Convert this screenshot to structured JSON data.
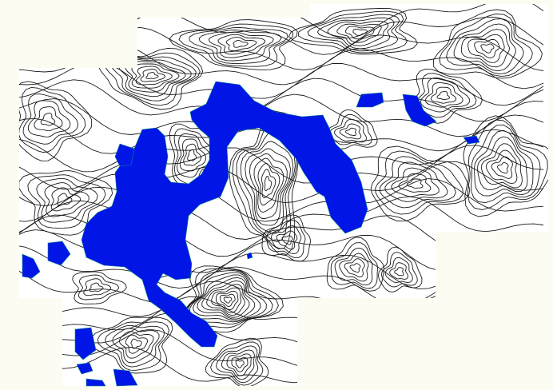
{
  "map": {
    "background_color": "#fdfcf3",
    "tile_color": "#ffffff",
    "contour_color": "#1a1a1a",
    "water_color": "#0015e6",
    "water_outline_color": "#0a8a8a",
    "tiles": [
      {
        "name": "tile-northeast"
      },
      {
        "name": "tile-west-central"
      },
      {
        "name": "tile-southwest"
      }
    ],
    "water_bodies": [
      {
        "name": "main-lake"
      },
      {
        "name": "pond-northeast-1"
      },
      {
        "name": "pond-northeast-2"
      },
      {
        "name": "pond-east-small"
      },
      {
        "name": "pond-west-1"
      },
      {
        "name": "pond-west-2"
      },
      {
        "name": "pond-northwest-small"
      },
      {
        "name": "pond-southwest-1"
      },
      {
        "name": "pond-southwest-2"
      },
      {
        "name": "pond-southwest-3"
      },
      {
        "name": "pond-southwest-4"
      },
      {
        "name": "pond-central-tiny"
      }
    ]
  }
}
